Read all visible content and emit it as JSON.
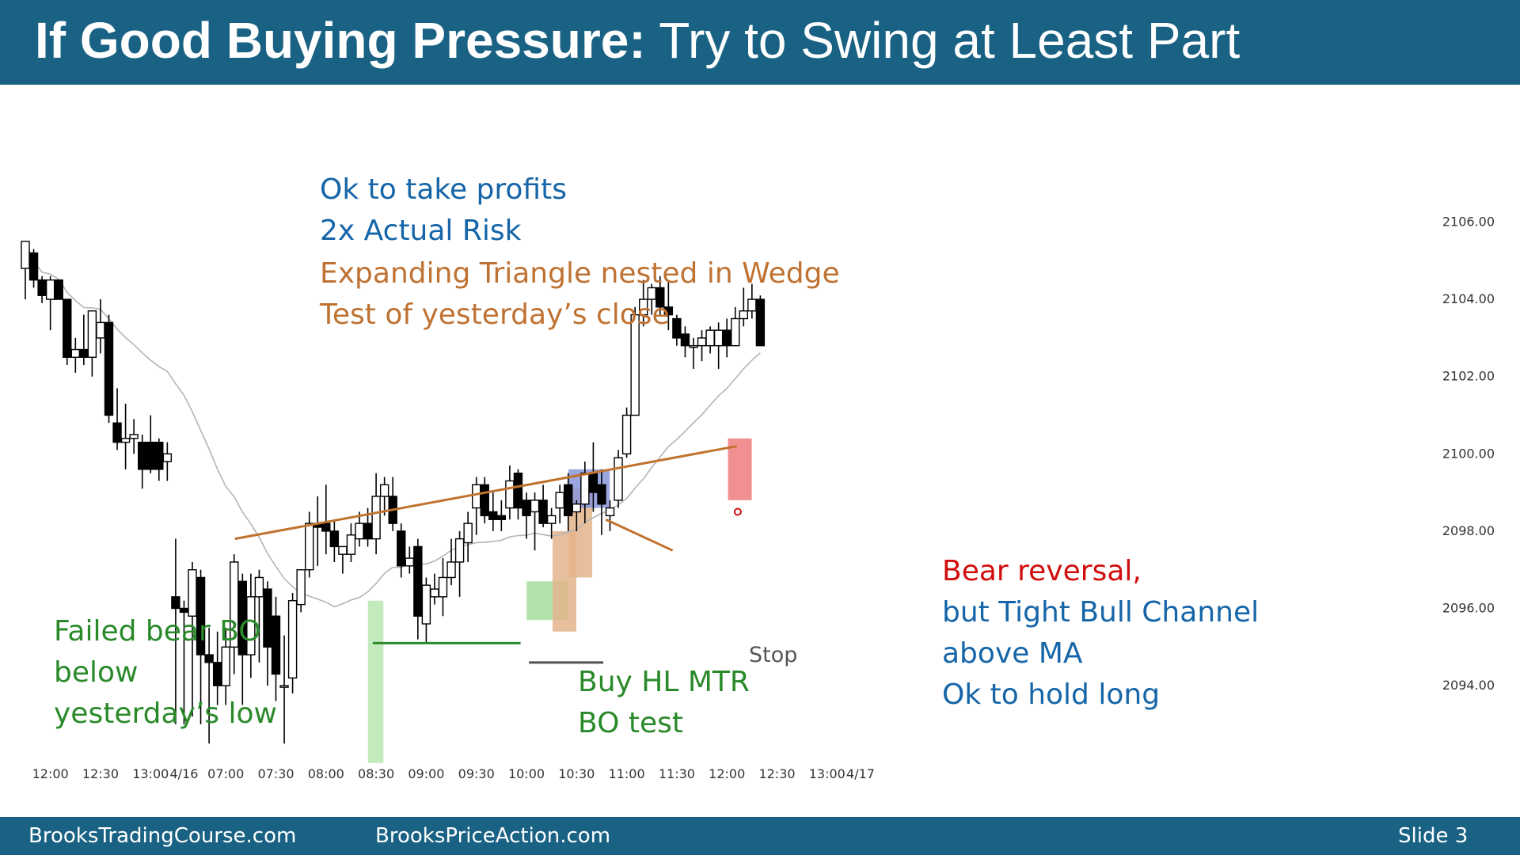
{
  "slide": {
    "title_bold": "If Good Buying Pressure:",
    "title_rest": " Try to Swing at Least Part",
    "footer_left": "BrooksTradingCourse.com",
    "footer_center": "BrooksPriceAction.com",
    "footer_right": "Slide  3"
  },
  "annotations": {
    "profits": [
      "Ok to take profits",
      "2x Actual Risk"
    ],
    "triangle": [
      "Expanding Triangle nested in Wedge",
      "Test of yesterday’s close"
    ],
    "failed_bo": [
      "Failed bear BO",
      "below",
      "yesterday’s low"
    ],
    "buy": [
      "Buy HL MTR",
      "BO test"
    ],
    "stop": "Stop",
    "reversal_red": "Bear reversal,",
    "reversal_blue": [
      "but Tight Bull Channel",
      "above MA",
      "Ok to hold long"
    ]
  },
  "colors": {
    "header": "#1a6284",
    "blue_text": "#1565a8",
    "brown_text": "#bf7232",
    "green_text": "#2a8a2a",
    "red_text": "#d10d0d",
    "trendline": "#c0722f",
    "support_line": "#2a8a2a",
    "moving_average": "#b4b4b4"
  },
  "chart_data": {
    "type": "candlestick",
    "y_ticks": [
      "2106.00",
      "2104.00",
      "2102.00",
      "2100.00",
      "2098.00",
      "2096.00",
      "2094.00"
    ],
    "y_tick_values": [
      2106,
      2104,
      2102,
      2100,
      2098,
      2096,
      2094
    ],
    "ylim": [
      2092.2,
      2106.8
    ],
    "x_ticks": [
      {
        "label": "12:00",
        "bar": 3
      },
      {
        "label": "12:30",
        "bar": 9
      },
      {
        "label": "13:00",
        "bar": 15
      },
      {
        "label": "4/16",
        "bar": 19
      },
      {
        "label": "07:00",
        "bar": 24
      },
      {
        "label": "07:30",
        "bar": 30
      },
      {
        "label": "08:00",
        "bar": 36
      },
      {
        "label": "08:30",
        "bar": 42
      },
      {
        "label": "09:00",
        "bar": 48
      },
      {
        "label": "09:30",
        "bar": 54
      },
      {
        "label": "10:00",
        "bar": 60
      },
      {
        "label": "10:30",
        "bar": 66
      },
      {
        "label": "11:00",
        "bar": 72
      },
      {
        "label": "11:30",
        "bar": 78
      },
      {
        "label": "12:00",
        "bar": 84
      },
      {
        "label": "12:30",
        "bar": 90
      },
      {
        "label": "13:00",
        "bar": 96
      },
      {
        "label": "4/17",
        "bar": 100
      }
    ],
    "bars": [
      {
        "o": 2104.8,
        "h": 2105.5,
        "l": 2104.0,
        "c": 2105.5
      },
      {
        "o": 2105.2,
        "h": 2105.3,
        "l": 2104.3,
        "c": 2104.5
      },
      {
        "o": 2104.5,
        "h": 2104.6,
        "l": 2103.9,
        "c": 2104.1
      },
      {
        "o": 2104.0,
        "h": 2104.6,
        "l": 2103.2,
        "c": 2104.5
      },
      {
        "o": 2104.5,
        "h": 2104.5,
        "l": 2104.0,
        "c": 2104.0
      },
      {
        "o": 2104.0,
        "h": 2104.0,
        "l": 2102.3,
        "c": 2102.5
      },
      {
        "o": 2102.5,
        "h": 2103.0,
        "l": 2102.1,
        "c": 2102.7
      },
      {
        "o": 2102.7,
        "h": 2103.6,
        "l": 2102.3,
        "c": 2102.5
      },
      {
        "o": 2102.5,
        "h": 2103.7,
        "l": 2102.0,
        "c": 2103.7
      },
      {
        "o": 2103.0,
        "h": 2104.0,
        "l": 2102.6,
        "c": 2103.4
      },
      {
        "o": 2103.4,
        "h": 2103.6,
        "l": 2100.8,
        "c": 2101.0
      },
      {
        "o": 2100.8,
        "h": 2101.7,
        "l": 2100.1,
        "c": 2100.3
      },
      {
        "o": 2100.3,
        "h": 2101.3,
        "l": 2099.6,
        "c": 2100.4
      },
      {
        "o": 2100.4,
        "h": 2100.9,
        "l": 2100.0,
        "c": 2100.5
      },
      {
        "o": 2100.3,
        "h": 2100.5,
        "l": 2099.1,
        "c": 2099.6
      },
      {
        "o": 2100.3,
        "h": 2101.0,
        "l": 2099.5,
        "c": 2099.6
      },
      {
        "o": 2100.3,
        "h": 2100.4,
        "l": 2099.3,
        "c": 2099.6
      },
      {
        "o": 2099.8,
        "h": 2100.3,
        "l": 2099.3,
        "c": 2100.0
      },
      {
        "o": 2096.3,
        "h": 2097.8,
        "l": 2093.0,
        "c": 2096.0
      },
      {
        "o": 2096.0,
        "h": 2096.2,
        "l": 2093.0,
        "c": 2095.9
      },
      {
        "o": 2095.8,
        "h": 2097.2,
        "l": 2093.2,
        "c": 2097.0
      },
      {
        "o": 2096.8,
        "h": 2097.0,
        "l": 2093.0,
        "c": 2094.8
      },
      {
        "o": 2094.8,
        "h": 2095.5,
        "l": 2092.5,
        "c": 2094.6
      },
      {
        "o": 2094.6,
        "h": 2095.4,
        "l": 2093.5,
        "c": 2094.0
      },
      {
        "o": 2094.0,
        "h": 2095.5,
        "l": 2093.5,
        "c": 2095.0
      },
      {
        "o": 2095.0,
        "h": 2097.4,
        "l": 2094.3,
        "c": 2097.2
      },
      {
        "o": 2096.7,
        "h": 2096.9,
        "l": 2093.5,
        "c": 2094.8
      },
      {
        "o": 2094.8,
        "h": 2096.9,
        "l": 2094.2,
        "c": 2096.3
      },
      {
        "o": 2096.3,
        "h": 2097.0,
        "l": 2094.6,
        "c": 2096.8
      },
      {
        "o": 2096.5,
        "h": 2096.7,
        "l": 2094.0,
        "c": 2095.0
      },
      {
        "o": 2095.8,
        "h": 2096.3,
        "l": 2093.6,
        "c": 2094.3
      },
      {
        "o": 2094.0,
        "h": 2095.3,
        "l": 2092.5,
        "c": 2094.0
      },
      {
        "o": 2094.2,
        "h": 2096.4,
        "l": 2093.8,
        "c": 2096.2
      },
      {
        "o": 2096.1,
        "h": 2097.0,
        "l": 2095.9,
        "c": 2097.0
      },
      {
        "o": 2097.0,
        "h": 2098.5,
        "l": 2096.8,
        "c": 2098.2
      },
      {
        "o": 2098.2,
        "h": 2098.9,
        "l": 2097.1,
        "c": 2098.1
      },
      {
        "o": 2098.2,
        "h": 2099.2,
        "l": 2097.4,
        "c": 2098.0
      },
      {
        "o": 2098.0,
        "h": 2098.3,
        "l": 2097.2,
        "c": 2097.6
      },
      {
        "o": 2097.4,
        "h": 2097.6,
        "l": 2096.9,
        "c": 2097.6
      },
      {
        "o": 2097.4,
        "h": 2098.2,
        "l": 2097.2,
        "c": 2097.9
      },
      {
        "o": 2097.8,
        "h": 2098.5,
        "l": 2097.6,
        "c": 2098.2
      },
      {
        "o": 2098.2,
        "h": 2098.6,
        "l": 2097.6,
        "c": 2097.8
      },
      {
        "o": 2097.8,
        "h": 2099.5,
        "l": 2097.4,
        "c": 2098.9
      },
      {
        "o": 2098.9,
        "h": 2099.4,
        "l": 2098.4,
        "c": 2099.2
      },
      {
        "o": 2098.9,
        "h": 2099.4,
        "l": 2098.0,
        "c": 2098.2
      },
      {
        "o": 2098.0,
        "h": 2098.2,
        "l": 2096.8,
        "c": 2097.1
      },
      {
        "o": 2097.1,
        "h": 2097.6,
        "l": 2096.9,
        "c": 2097.3
      },
      {
        "o": 2097.6,
        "h": 2097.8,
        "l": 2095.2,
        "c": 2095.8
      },
      {
        "o": 2095.6,
        "h": 2096.8,
        "l": 2095.1,
        "c": 2096.6
      },
      {
        "o": 2096.3,
        "h": 2096.9,
        "l": 2096.1,
        "c": 2096.5
      },
      {
        "o": 2096.3,
        "h": 2097.3,
        "l": 2095.8,
        "c": 2096.8
      },
      {
        "o": 2096.8,
        "h": 2097.8,
        "l": 2096.6,
        "c": 2097.2
      },
      {
        "o": 2097.2,
        "h": 2098.0,
        "l": 2096.3,
        "c": 2097.8
      },
      {
        "o": 2097.7,
        "h": 2098.5,
        "l": 2097.2,
        "c": 2098.2
      },
      {
        "o": 2098.6,
        "h": 2099.4,
        "l": 2097.9,
        "c": 2099.2
      },
      {
        "o": 2099.2,
        "h": 2099.4,
        "l": 2098.2,
        "c": 2098.4
      },
      {
        "o": 2098.5,
        "h": 2099.0,
        "l": 2098.0,
        "c": 2098.3
      },
      {
        "o": 2098.4,
        "h": 2098.8,
        "l": 2098.0,
        "c": 2098.3
      },
      {
        "o": 2098.6,
        "h": 2099.7,
        "l": 2098.3,
        "c": 2099.3
      },
      {
        "o": 2099.5,
        "h": 2099.6,
        "l": 2098.3,
        "c": 2098.6
      },
      {
        "o": 2098.8,
        "h": 2099.0,
        "l": 2097.8,
        "c": 2098.4
      },
      {
        "o": 2098.5,
        "h": 2099.0,
        "l": 2097.5,
        "c": 2098.8
      },
      {
        "o": 2098.8,
        "h": 2099.2,
        "l": 2098.1,
        "c": 2098.2
      },
      {
        "o": 2098.2,
        "h": 2098.6,
        "l": 2097.8,
        "c": 2098.4
      },
      {
        "o": 2098.6,
        "h": 2099.2,
        "l": 2098.2,
        "c": 2099.0
      },
      {
        "o": 2099.2,
        "h": 2099.5,
        "l": 2098.0,
        "c": 2098.4
      },
      {
        "o": 2098.5,
        "h": 2098.8,
        "l": 2098.0,
        "c": 2098.7
      },
      {
        "o": 2098.7,
        "h": 2099.8,
        "l": 2098.2,
        "c": 2099.5
      },
      {
        "o": 2099.5,
        "h": 2100.3,
        "l": 2098.5,
        "c": 2099.0
      },
      {
        "o": 2099.2,
        "h": 2099.6,
        "l": 2097.9,
        "c": 2098.7
      },
      {
        "o": 2098.4,
        "h": 2098.8,
        "l": 2098.0,
        "c": 2098.6
      },
      {
        "o": 2098.8,
        "h": 2100.1,
        "l": 2098.6,
        "c": 2099.9
      },
      {
        "o": 2100.0,
        "h": 2101.2,
        "l": 2099.9,
        "c": 2101.0
      },
      {
        "o": 2101.0,
        "h": 2103.8,
        "l": 2101.0,
        "c": 2103.6
      },
      {
        "o": 2103.6,
        "h": 2104.5,
        "l": 2103.3,
        "c": 2104.0
      },
      {
        "o": 2104.0,
        "h": 2104.4,
        "l": 2103.6,
        "c": 2104.3
      },
      {
        "o": 2104.3,
        "h": 2104.6,
        "l": 2103.6,
        "c": 2103.8
      },
      {
        "o": 2103.8,
        "h": 2104.5,
        "l": 2103.2,
        "c": 2103.6
      },
      {
        "o": 2103.5,
        "h": 2103.6,
        "l": 2102.8,
        "c": 2103.0
      },
      {
        "o": 2103.1,
        "h": 2103.3,
        "l": 2102.5,
        "c": 2102.8
      },
      {
        "o": 2102.8,
        "h": 2103.0,
        "l": 2102.2,
        "c": 2102.8
      },
      {
        "o": 2102.8,
        "h": 2103.2,
        "l": 2102.4,
        "c": 2103.0
      },
      {
        "o": 2102.8,
        "h": 2103.3,
        "l": 2102.6,
        "c": 2103.2
      },
      {
        "o": 2102.8,
        "h": 2103.4,
        "l": 2102.2,
        "c": 2103.2
      },
      {
        "o": 2103.2,
        "h": 2103.5,
        "l": 2102.5,
        "c": 2102.8
      },
      {
        "o": 2102.8,
        "h": 2103.8,
        "l": 2102.8,
        "c": 2103.5
      },
      {
        "o": 2103.5,
        "h": 2104.3,
        "l": 2103.3,
        "c": 2103.7
      },
      {
        "o": 2103.7,
        "h": 2104.4,
        "l": 2103.5,
        "c": 2104.0
      },
      {
        "o": 2104.0,
        "h": 2104.1,
        "l": 2102.8,
        "c": 2102.8
      }
    ]
  }
}
